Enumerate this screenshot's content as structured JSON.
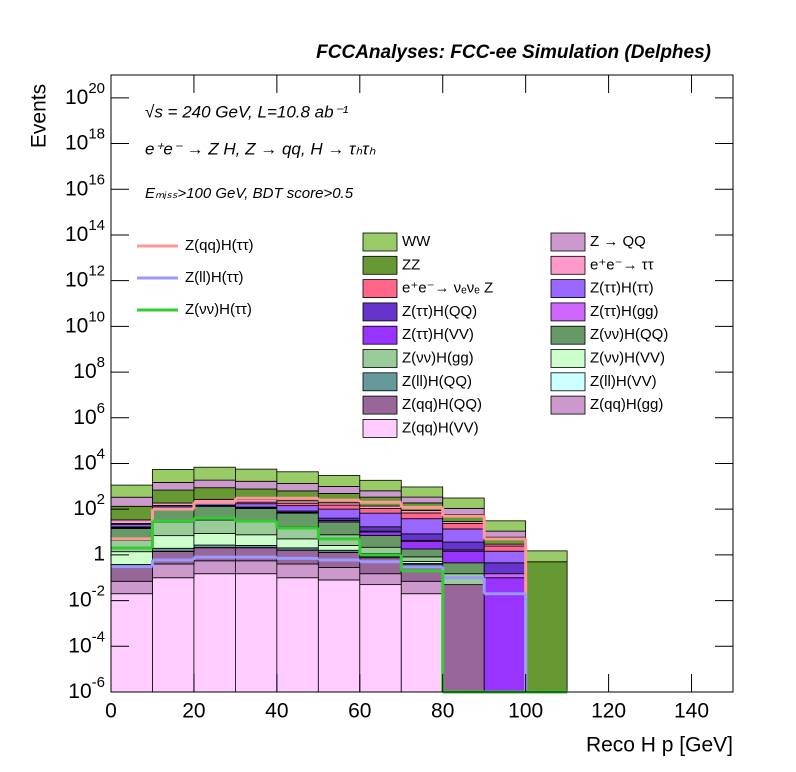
{
  "chart_data": {
    "type": "histogram",
    "title": "FCCAnalyses: FCC-ee Simulation (Delphes)",
    "annotations": [
      "√s = 240 GeV, L=10.8 ab⁻¹",
      "e⁺e⁻ → Z H, Z → qq, H → τₕτₕ",
      "Eₘᵢₛₛ>100 GeV, BDT score>0.5"
    ],
    "x_label": "Reco H p [GeV]",
    "y_label": "Events",
    "xlim": [
      0,
      150
    ],
    "xticks": [
      0,
      20,
      40,
      60,
      80,
      100,
      120,
      140
    ],
    "ylim": [
      1e-06,
      1e+21
    ],
    "log_y": true,
    "yticks": [
      {
        "value": 1e-06,
        "label": "10^-6"
      },
      {
        "value": 0.0001,
        "label": "10^-4"
      },
      {
        "value": 0.01,
        "label": "10^-2"
      },
      1,
      {
        "value": 100,
        "label": "10^2"
      },
      {
        "value": 10000,
        "label": "10^4"
      },
      {
        "value": 1000000.0,
        "label": "10^6"
      },
      {
        "value": 100000000.0,
        "label": "10^8"
      },
      {
        "value": 10000000000.0,
        "label": "10^10"
      },
      {
        "value": 1000000000000.0,
        "label": "10^12"
      },
      {
        "value": 100000000000000.0,
        "label": "10^14"
      },
      {
        "value": 1e+16,
        "label": "10^16"
      },
      {
        "value": 1e+18,
        "label": "10^18"
      },
      {
        "value": 1e+20,
        "label": "10^20"
      }
    ],
    "bins": [
      0,
      10,
      20,
      30,
      40,
      50,
      60,
      70,
      80,
      90,
      100,
      110
    ],
    "series": [
      {
        "name": "WW",
        "color": "#99cc66",
        "values": [
          800,
          4000,
          5000,
          4000,
          3000,
          2000,
          1200,
          600,
          200,
          20,
          1
        ]
      },
      {
        "name": "Z → QQ",
        "color": "#cc99cc",
        "values": [
          200,
          800,
          1000,
          900,
          700,
          500,
          300,
          150,
          50,
          5,
          0
        ]
      },
      {
        "name": "ZZ",
        "color": "#669933",
        "values": [
          100,
          500,
          600,
          500,
          400,
          300,
          200,
          100,
          30,
          3,
          0.5
        ]
      },
      {
        "name": "e⁺e⁻→ ττ",
        "color": "#ff99cc",
        "values": [
          10,
          40,
          60,
          60,
          50,
          40,
          30,
          20,
          5,
          0.5,
          0
        ]
      },
      {
        "name": "e⁺e⁻→ νₑνₑ Z",
        "color": "#ff6688",
        "values": [
          2,
          10,
          20,
          30,
          40,
          50,
          40,
          30,
          10,
          1,
          0
        ]
      },
      {
        "name": "Z(ττ)H(ττ)",
        "color": "#9966ff",
        "values": [
          5,
          20,
          40,
          50,
          60,
          60,
          50,
          30,
          10,
          1,
          0
        ]
      },
      {
        "name": "Z(ττ)H(QQ)",
        "color": "#6633cc",
        "values": [
          1,
          5,
          10,
          10,
          10,
          8,
          6,
          4,
          2,
          0.3,
          0
        ]
      },
      {
        "name": "Z(ττ)H(gg)",
        "color": "#cc66ff",
        "values": [
          0.5,
          1,
          1,
          1,
          1,
          1,
          0.8,
          0.5,
          0.2,
          0.05,
          0
        ]
      },
      {
        "name": "Z(ττ)H(VV)",
        "color": "#9933ff",
        "values": [
          1,
          3,
          5,
          5,
          5,
          4,
          3,
          2,
          1,
          0.1,
          0
        ]
      },
      {
        "name": "Z(νν)H(QQ)",
        "color": "#669966",
        "values": [
          10,
          80,
          100,
          80,
          50,
          20,
          5,
          1,
          0.3,
          0,
          0
        ]
      },
      {
        "name": "Z(νν)H(gg)",
        "color": "#99cc99",
        "values": [
          3,
          20,
          25,
          20,
          12,
          5,
          1,
          0.3,
          0.1,
          0,
          0
        ]
      },
      {
        "name": "Z(νν)H(VV)",
        "color": "#ccffcc",
        "values": [
          1,
          5,
          6,
          5,
          3,
          1,
          0.3,
          0.1,
          0,
          0,
          0
        ]
      },
      {
        "name": "Z(ll)H(QQ)",
        "color": "#669999",
        "values": [
          0.1,
          0.5,
          0.6,
          0.5,
          0.4,
          0.3,
          0.1,
          0.05,
          0,
          0,
          0
        ]
      },
      {
        "name": "Z(ll)H(VV)",
        "color": "#ccffff",
        "values": [
          0.01,
          0.05,
          0.05,
          0.04,
          0.03,
          0.02,
          0.01,
          0,
          0,
          0,
          0
        ]
      },
      {
        "name": "Z(qq)H(QQ)",
        "color": "#996699",
        "values": [
          0.2,
          1,
          1.5,
          1.5,
          1.2,
          1,
          0.6,
          0.3,
          0.05,
          0,
          0
        ]
      },
      {
        "name": "Z(qq)H(gg)",
        "color": "#cc99cc",
        "values": [
          0.05,
          0.3,
          0.4,
          0.4,
          0.3,
          0.2,
          0.1,
          0.05,
          0,
          0,
          0
        ]
      },
      {
        "name": "Z(qq)H(VV)",
        "color": "#ffccff",
        "values": [
          0.02,
          0.1,
          0.15,
          0.15,
          0.1,
          0.08,
          0.05,
          0.02,
          0,
          0,
          0
        ]
      }
    ],
    "signal_series": [
      {
        "name": "Z(qq)H(ττ)",
        "color": "#ff9999",
        "values": [
          5,
          100,
          200,
          300,
          300,
          250,
          200,
          120,
          50,
          5,
          0
        ]
      },
      {
        "name": "Z(ll)H(ττ)",
        "color": "#9999ff",
        "values": [
          0.3,
          0.6,
          0.8,
          0.8,
          0.7,
          0.6,
          0.5,
          0.3,
          0.1,
          0.02,
          0
        ]
      },
      {
        "name": "Z(νν)H(ττ)",
        "color": "#33cc33",
        "values": [
          2,
          30,
          40,
          30,
          15,
          5,
          1,
          0.2,
          0,
          0,
          0
        ]
      }
    ]
  }
}
